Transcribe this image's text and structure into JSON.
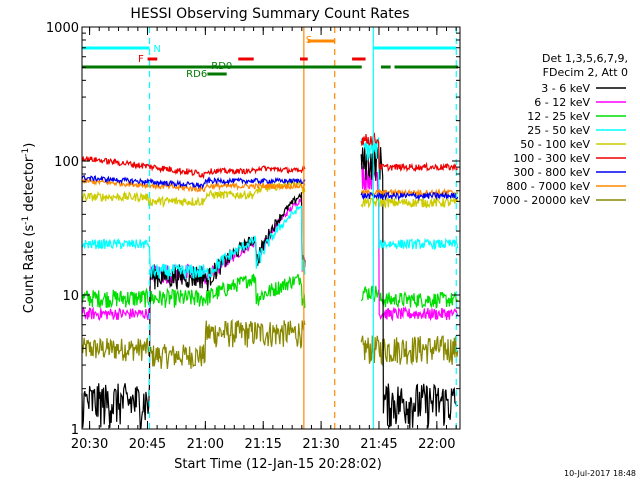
{
  "chart_data": {
    "type": "line",
    "title": "HESSI Observing Summary Count Rates",
    "xlabel": "Start Time (12-Jan-15 20:28:02)",
    "ylabel_main": "Count Rate (s",
    "ylabel_sup1": "-1",
    "ylabel_mid": " detector",
    "ylabel_sup2": "-1",
    "ylabel_end": ")",
    "y_scale": "log",
    "ylim": [
      1,
      1000
    ],
    "xlim_minutes": [
      0,
      97.97
    ],
    "x_ticks": [
      {
        "label": "20:30",
        "minutes": 1.97
      },
      {
        "label": "20:45",
        "minutes": 16.97
      },
      {
        "label": "21:00",
        "minutes": 31.97
      },
      {
        "label": "21:15",
        "minutes": 46.97
      },
      {
        "label": "21:30",
        "minutes": 61.97
      },
      {
        "label": "21:45",
        "minutes": 76.97
      },
      {
        "label": "22:00",
        "minutes": 91.97
      }
    ],
    "y_ticks": [
      {
        "label": "1",
        "value": 1
      },
      {
        "label": "10",
        "value": 10
      },
      {
        "label": "100",
        "value": 100
      },
      {
        "label": "1000",
        "value": 1000
      }
    ],
    "legend_header": [
      "Det 1,3,5,6,7,9,",
      "FDecim 2, Att 0"
    ],
    "series": [
      {
        "name": "3 - 6 keV",
        "color": "#000000"
      },
      {
        "name": "6 - 12 keV",
        "color": "#ff00ff"
      },
      {
        "name": "12 - 25 keV",
        "color": "#00dd00"
      },
      {
        "name": "25 - 50 keV",
        "color": "#00ffff"
      },
      {
        "name": "50 - 100 keV",
        "color": "#cccc00"
      },
      {
        "name": "100 - 300 keV",
        "color": "#ee0000"
      },
      {
        "name": "300 - 800 keV",
        "color": "#0000ee"
      },
      {
        "name": "800 - 7000 keV",
        "color": "#ff8800"
      },
      {
        "name": "7000 - 20000 keV",
        "color": "#888800"
      }
    ],
    "flag_bars": [
      {
        "label": "N",
        "color": "#00ffff",
        "segments": [
          [
            0,
            17.5
          ],
          [
            75.5,
            97
          ]
        ]
      },
      {
        "label": "F",
        "color": "#ee0000",
        "segments": [
          [
            17.0,
            19.5
          ],
          [
            40.5,
            44.5
          ],
          [
            56.5,
            58.5
          ],
          [
            70.0,
            73.5
          ]
        ]
      },
      {
        "label": "S",
        "color": "#ff8800",
        "segments": [
          [
            58.5,
            65.5
          ]
        ]
      },
      {
        "label": "RD0",
        "color": "#007700",
        "segments": [
          [
            0,
            72.5
          ],
          [
            77.5,
            80.0
          ],
          [
            81.0,
            97.5
          ]
        ]
      },
      {
        "label": "RD6",
        "color": "#007700",
        "segments": [
          [
            32.5,
            37.5
          ]
        ]
      }
    ],
    "vlines": [
      {
        "minutes": 17.5,
        "color": "#00ffff",
        "dashed": true
      },
      {
        "minutes": 57.5,
        "color": "#ff8800",
        "dashed": false
      },
      {
        "minutes": 65.5,
        "color": "#ff8800",
        "dashed": true
      },
      {
        "minutes": 75.5,
        "color": "#00ffff",
        "dashed": false
      },
      {
        "minutes": 97.0,
        "color": "#00ffff",
        "dashed": true
      }
    ],
    "timestamp": "10-Jul-2017 18:48"
  }
}
